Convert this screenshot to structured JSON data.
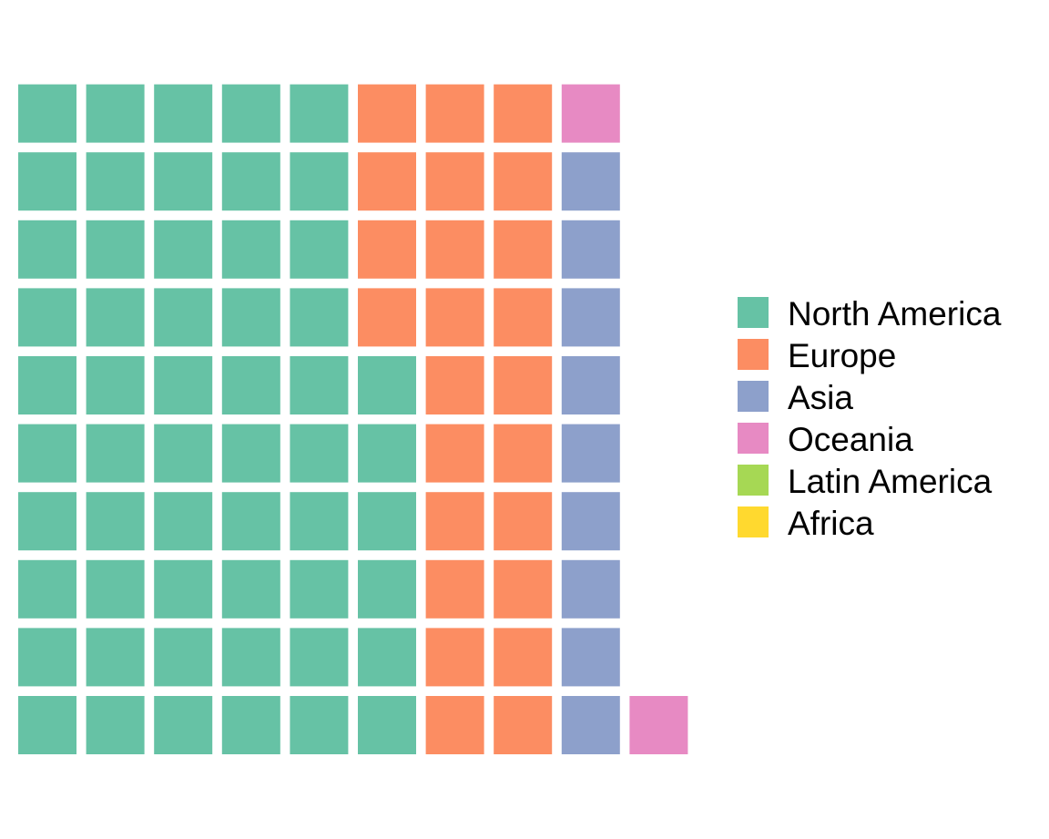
{
  "chart_data": {
    "type": "waffle",
    "total_cells": 91,
    "grid": {
      "rows": 10,
      "columns": 10,
      "fill_order": "column-major, bottom-to-top, left-to-right"
    },
    "categories": [
      "North America",
      "Europe",
      "Asia",
      "Oceania",
      "Latin America",
      "Africa"
    ],
    "values": [
      56,
      24,
      9,
      2,
      0,
      0
    ],
    "colors": [
      "#66c2a5",
      "#fc8d62",
      "#8da0cb",
      "#e78ac3",
      "#a6d854",
      "#ffd92f"
    ],
    "legend": {
      "position": "right"
    },
    "title": "",
    "xlabel": "",
    "ylabel": "",
    "grid_lines": false
  }
}
